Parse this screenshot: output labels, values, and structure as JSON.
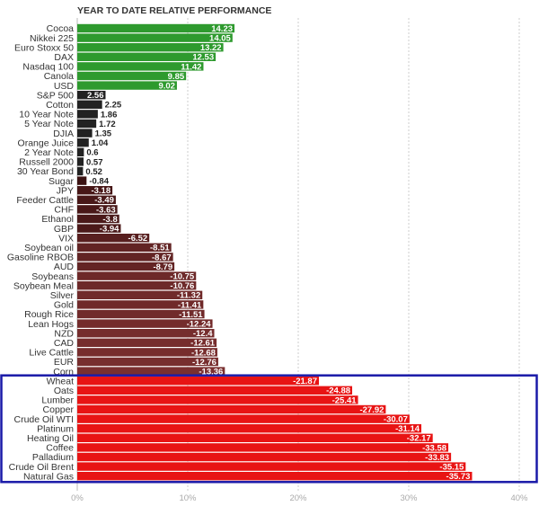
{
  "chart_data": {
    "type": "bar",
    "orientation": "horizontal",
    "title": "YEAR TO DATE RELATIVE PERFORMANCE",
    "categories": [
      "Cocoa",
      "Nikkei 225",
      "Euro Stoxx 50",
      "DAX",
      "Nasdaq 100",
      "Canola",
      "USD",
      "S&P 500",
      "Cotton",
      "10 Year Note",
      "5 Year Note",
      "DJIA",
      "Orange Juice",
      "2 Year Note",
      "Russell 2000",
      "30 Year Bond",
      "Sugar",
      "JPY",
      "Feeder Cattle",
      "CHF",
      "Ethanol",
      "GBP",
      "VIX",
      "Soybean oil",
      "Gasoline RBOB",
      "AUD",
      "Soybeans",
      "Soybean Meal",
      "Silver",
      "Gold",
      "Rough Rice",
      "Lean Hogs",
      "NZD",
      "CAD",
      "Live Cattle",
      "EUR",
      "Corn",
      "Wheat",
      "Oats",
      "Lumber",
      "Copper",
      "Crude Oil WTI",
      "Platinum",
      "Heating Oil",
      "Coffee",
      "Palladium",
      "Crude Oil Brent",
      "Natural Gas"
    ],
    "values": [
      14.23,
      14.05,
      13.22,
      12.53,
      11.42,
      9.85,
      9.02,
      2.56,
      2.25,
      1.86,
      1.72,
      1.35,
      1.04,
      0.6,
      0.57,
      0.52,
      -0.84,
      -3.18,
      -3.49,
      -3.63,
      -3.8,
      -3.94,
      -6.52,
      -8.51,
      -8.67,
      -8.79,
      -10.75,
      -10.76,
      -11.32,
      -11.41,
      -11.51,
      -12.24,
      -12.4,
      -12.61,
      -12.68,
      -12.76,
      -13.36,
      -21.87,
      -24.88,
      -25.41,
      -27.92,
      -30.07,
      -31.14,
      -32.17,
      -33.58,
      -33.83,
      -35.15,
      -35.73
    ],
    "value_labels": [
      "14.23",
      "14.05",
      "13.22",
      "12.53",
      "11.42",
      "9.85",
      "9.02",
      "2.56",
      "2.25",
      "1.86",
      "1.72",
      "1.35",
      "1.04",
      "0.6",
      "0.57",
      "0.52",
      "-0.84",
      "-3.18",
      "-3.49",
      "-3.63",
      "-3.8",
      "-3.94",
      "-6.52",
      "-8.51",
      "-8.67",
      "-8.79",
      "-10.75",
      "-10.76",
      "-11.32",
      "-11.41",
      "-11.51",
      "-12.24",
      "-12.4",
      "-12.61",
      "-12.68",
      "-12.76",
      "-13.36",
      "-21.87",
      "-24.88",
      "-25.41",
      "-27.92",
      "-30.07",
      "-31.14",
      "-32.17",
      "-33.58",
      "-33.83",
      "-35.15",
      "-35.73"
    ],
    "bar_length": "absolute",
    "xlim": [
      0,
      40
    ],
    "x_ticks": [
      0,
      10,
      20,
      30,
      40
    ],
    "x_tick_labels": [
      "0%",
      "10%",
      "20%",
      "30%",
      "40%"
    ],
    "grid": "vertical dashed",
    "legend": "none",
    "highlight_box": {
      "from_category": "Wheat",
      "to_category": "Natural Gas",
      "color": "#1a1aa8"
    },
    "colors": {
      "positive": "#2e9a2e",
      "positive_light": "#3db63d",
      "negative_light": "#7a2f2f",
      "negative_dark": "#3b1212",
      "highlighted_negative": "#e81414",
      "label_inside": "#ffffff",
      "label_outside": "#222222"
    }
  }
}
